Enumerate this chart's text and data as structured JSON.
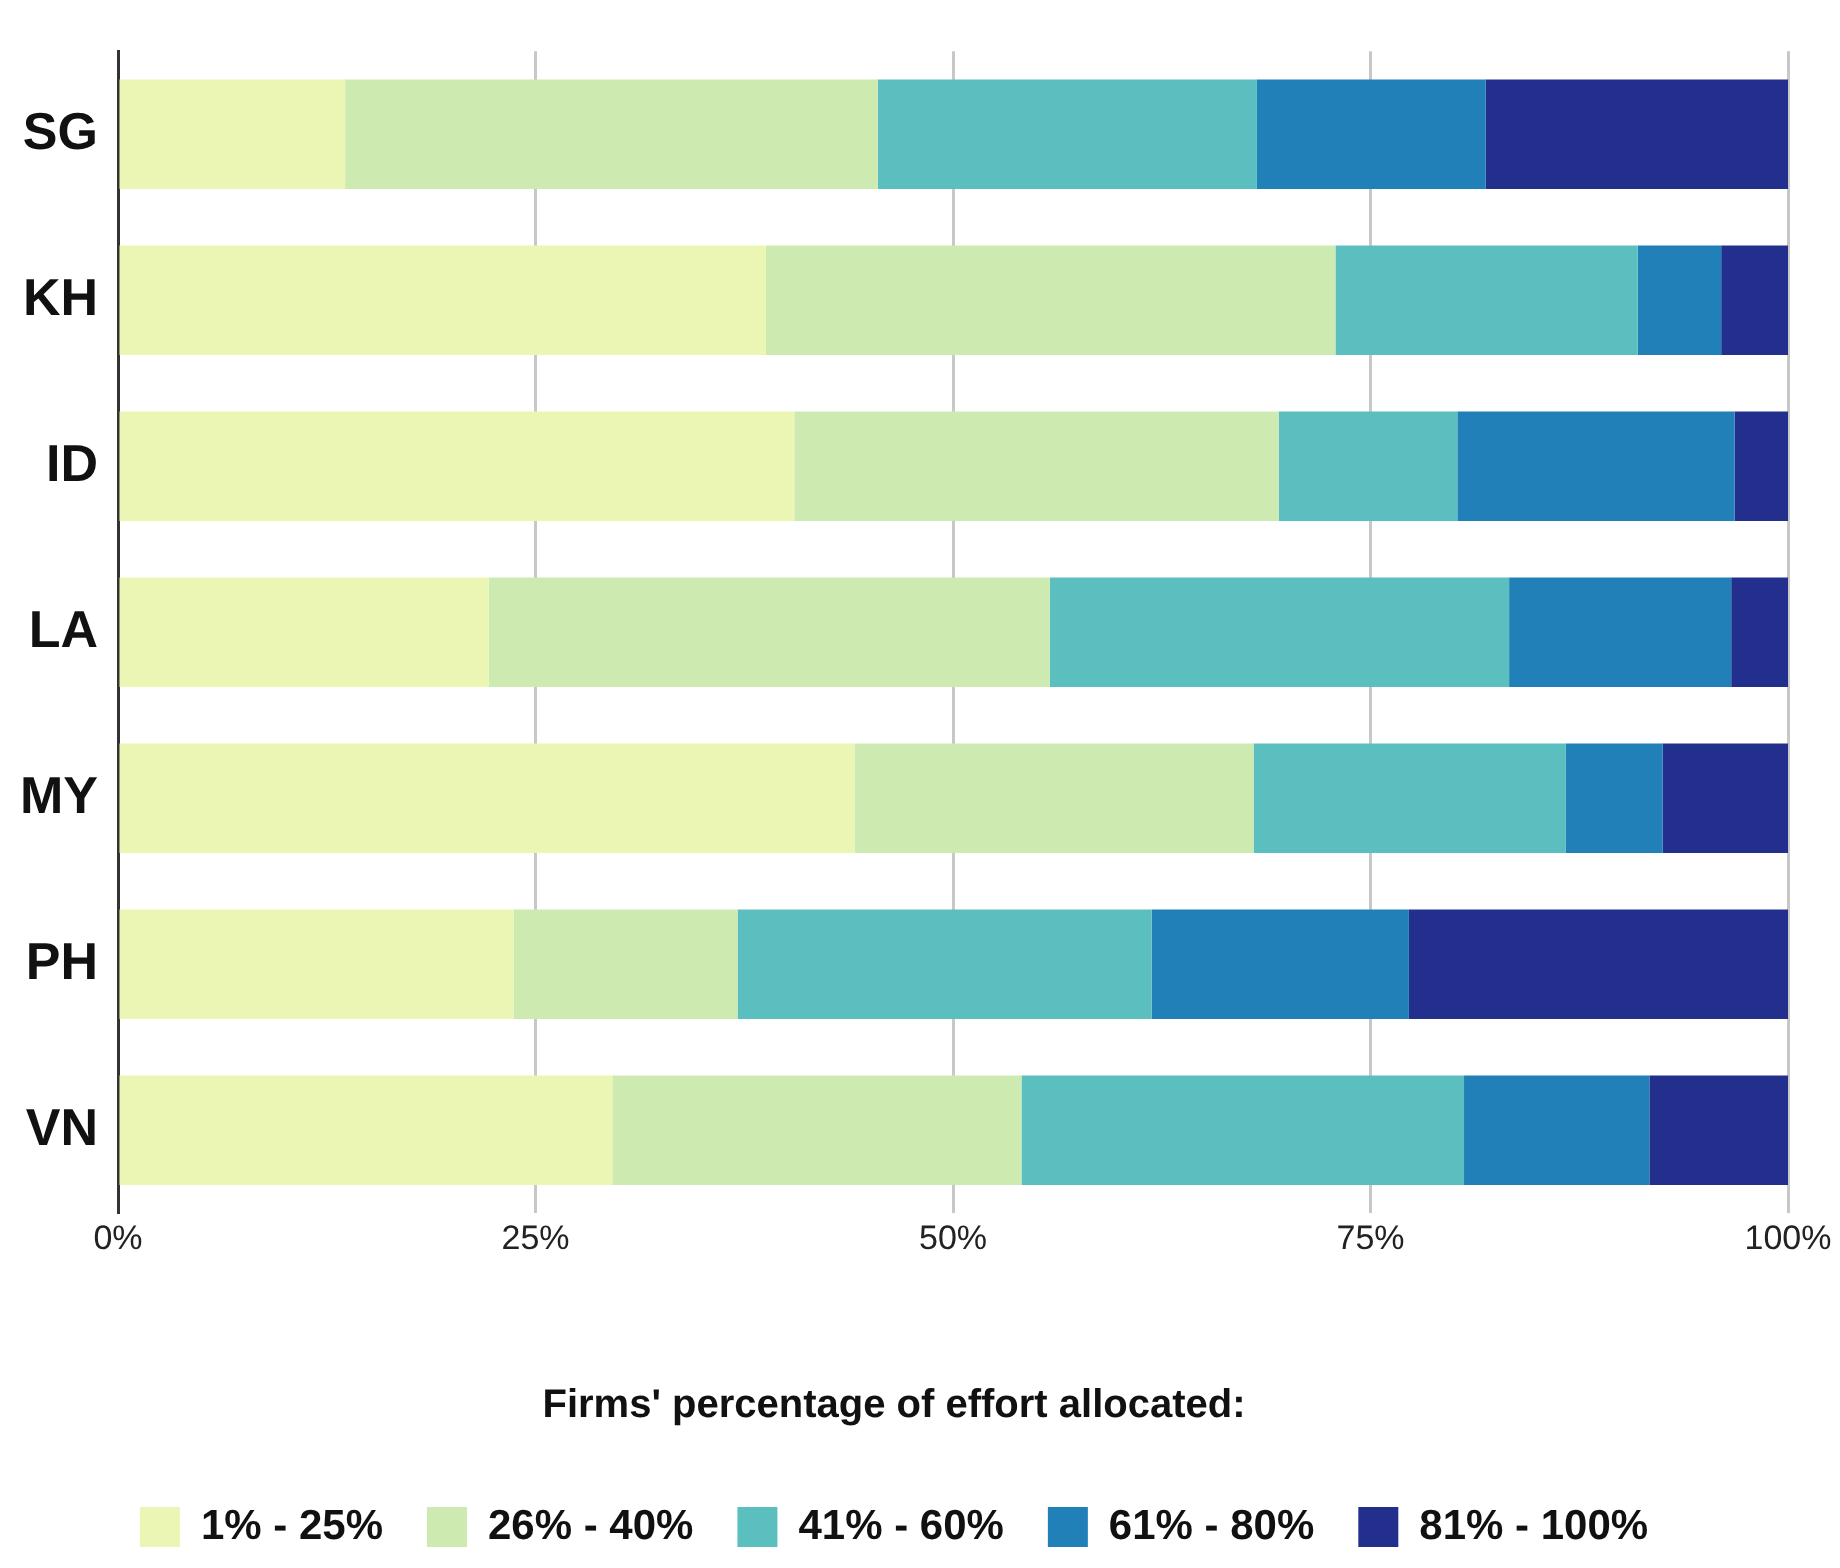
{
  "chart_data": {
    "type": "bar",
    "orientation": "horizontal",
    "stacked": true,
    "legend": "bottom",
    "grid": "x",
    "legend_title": "Firms' percentage of effort allocated:",
    "categories": [
      "SG",
      "KH",
      "ID",
      "LA",
      "MY",
      "PH",
      "VN"
    ],
    "series": [
      {
        "name": "1% - 25%",
        "color": "#ebf6b4",
        "values": [
          13.6,
          38.8,
          40.5,
          22.2,
          44.1,
          23.7,
          29.6
        ]
      },
      {
        "name": "26% - 40%",
        "color": "#cdeab0",
        "values": [
          31.9,
          34.1,
          29.0,
          33.6,
          23.9,
          13.4,
          24.5
        ]
      },
      {
        "name": "41% - 60%",
        "color": "#5cbfbf",
        "values": [
          22.7,
          18.1,
          10.7,
          27.5,
          18.7,
          24.8,
          26.5
        ]
      },
      {
        "name": "61% - 80%",
        "color": "#2280b8",
        "values": [
          13.7,
          5.0,
          16.6,
          13.3,
          5.8,
          15.4,
          11.1
        ]
      },
      {
        "name": "81% - 100%",
        "color": "#222f8c",
        "values": [
          18.1,
          4.0,
          3.2,
          3.4,
          7.5,
          22.7,
          8.3
        ]
      }
    ],
    "xlim": [
      0,
      100
    ],
    "xticks": [
      {
        "value": 0,
        "label": "0%"
      },
      {
        "value": 25,
        "label": "25%"
      },
      {
        "value": 50,
        "label": "50%"
      },
      {
        "value": 75,
        "label": "75%"
      },
      {
        "value": 100,
        "label": "100%"
      }
    ]
  }
}
